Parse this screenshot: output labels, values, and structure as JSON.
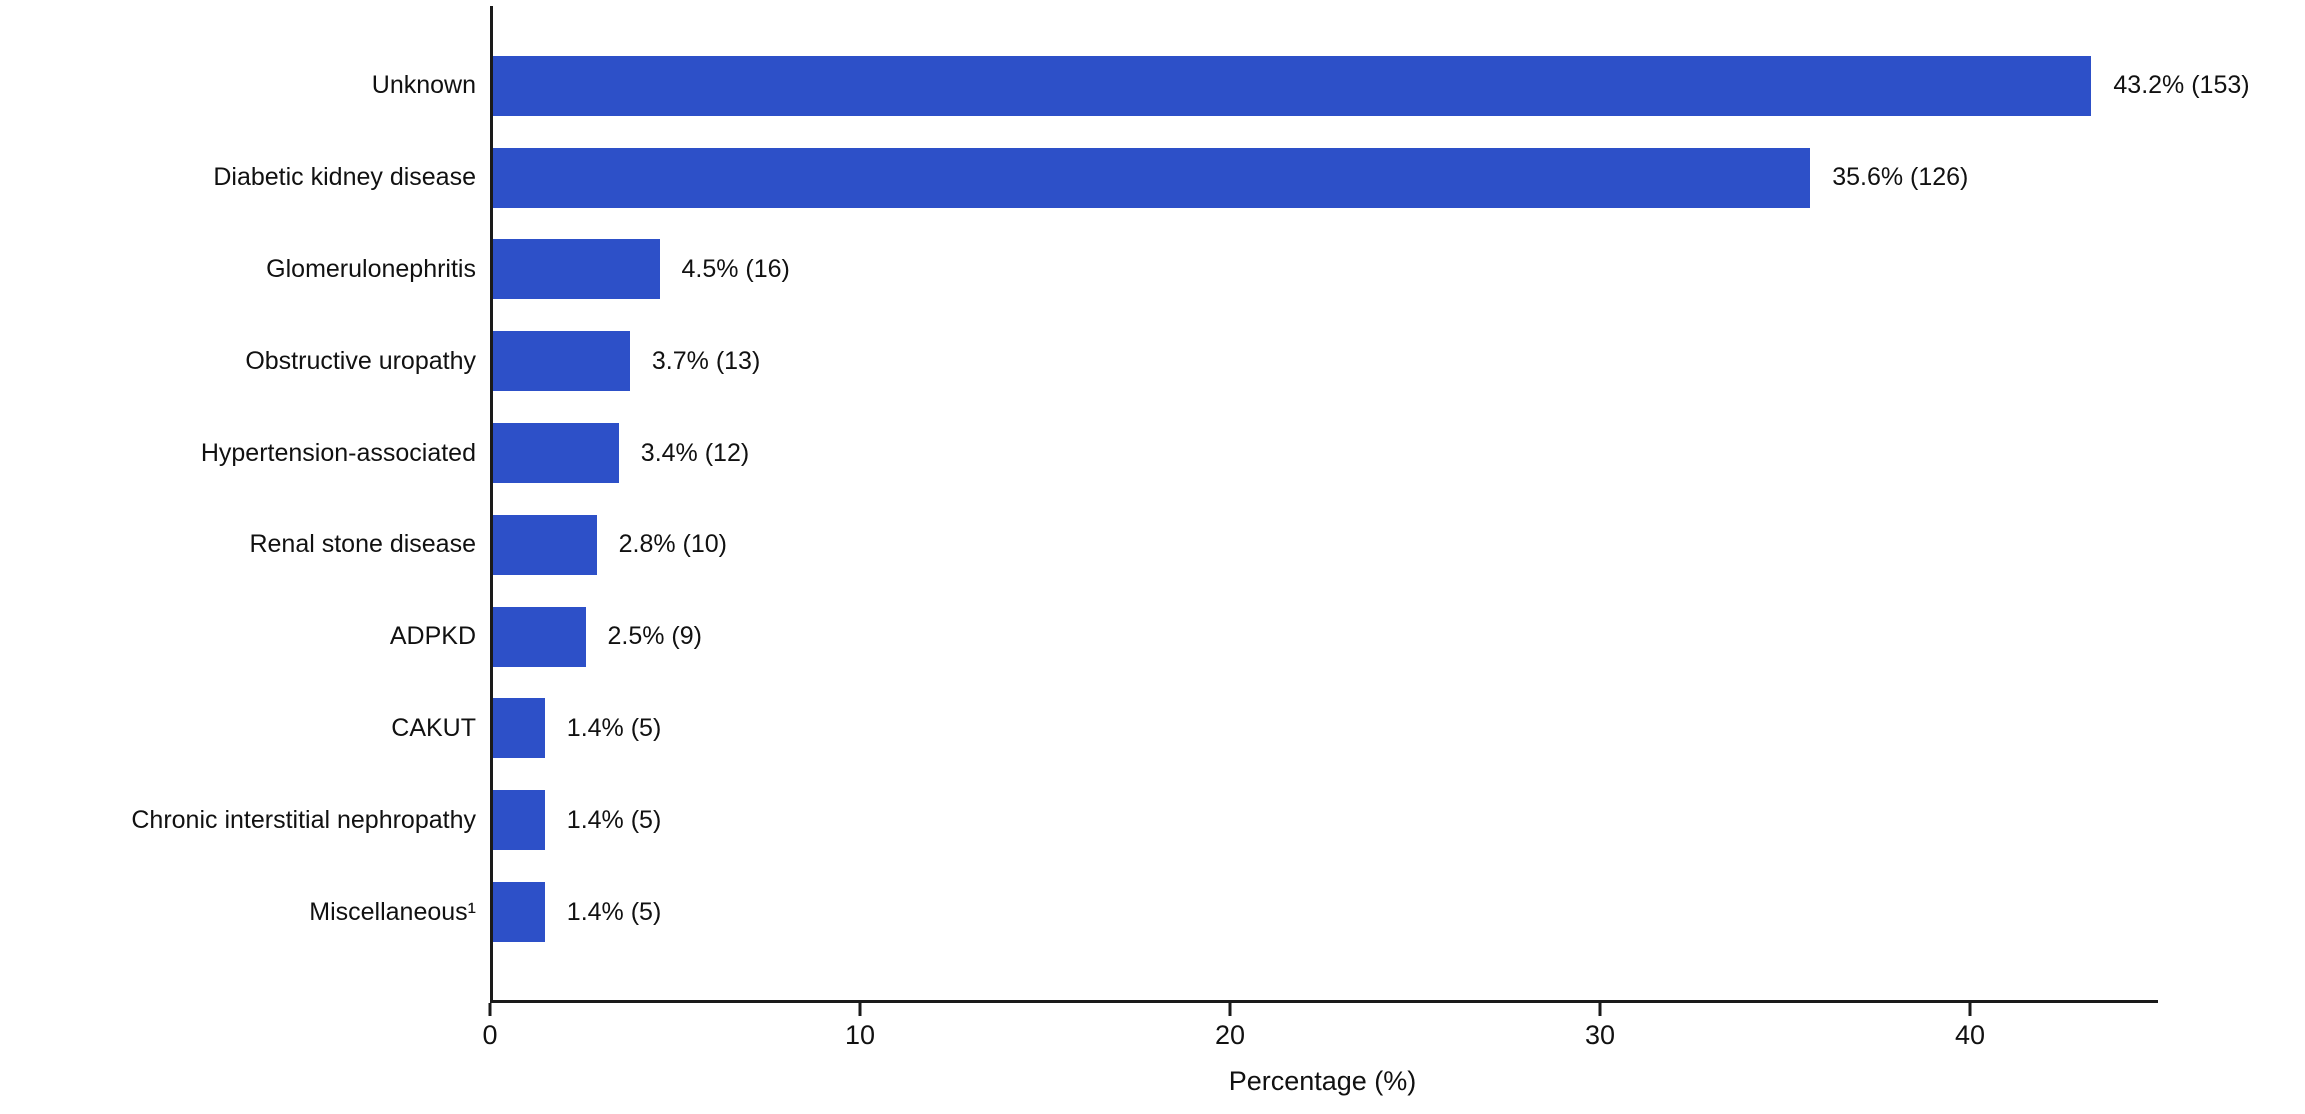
{
  "chart_data": {
    "type": "bar",
    "orientation": "horizontal",
    "title": "",
    "xlabel": "Percentage (%)",
    "ylabel": "",
    "xlim": [
      0,
      45
    ],
    "x_ticks": [
      0,
      10,
      20,
      30,
      40
    ],
    "grid": false,
    "legend": false,
    "bar_color": "#2d50c8",
    "categories": [
      "Unknown",
      "Diabetic kidney disease",
      "Glomerulonephritis",
      "Obstructive uropathy",
      "Hypertension-associated",
      "Renal stone disease",
      "ADPKD",
      "CAKUT",
      "Chronic interstitial nephropathy",
      "Miscellaneous¹"
    ],
    "values": [
      43.2,
      35.6,
      4.5,
      3.7,
      3.4,
      2.8,
      2.5,
      1.4,
      1.4,
      1.4
    ],
    "counts": [
      153,
      126,
      16,
      13,
      12,
      10,
      9,
      5,
      5,
      5
    ],
    "value_labels": [
      "43.2% (153)",
      "35.6% (126)",
      "4.5% (16)",
      "3.7% (13)",
      "3.4% (12)",
      "2.8% (10)",
      "2.5% (9)",
      "1.4% (5)",
      "1.4% (5)",
      "1.4% (5)"
    ]
  }
}
